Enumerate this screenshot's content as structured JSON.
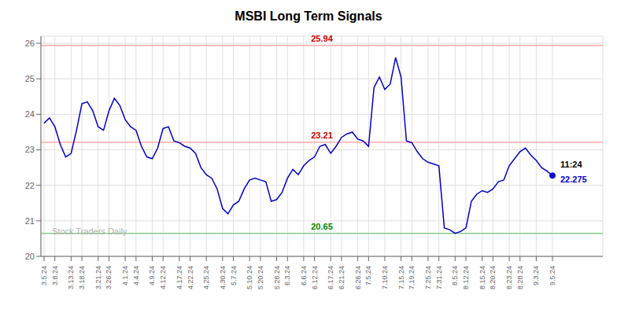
{
  "chart_data": {
    "type": "line",
    "title": "MSBI Long Term Signals",
    "categories": [
      "3.5.24",
      null,
      "3.8.24",
      null,
      null,
      "3.13.24",
      null,
      "3.18.24",
      null,
      null,
      "3.21.24",
      null,
      "3.26.24",
      null,
      null,
      "4.1.24",
      null,
      "4.4.24",
      null,
      null,
      "4.9.24",
      null,
      "4.12.24",
      null,
      null,
      "4.17.24",
      null,
      "4.22.24",
      null,
      null,
      "4.25.24",
      null,
      null,
      "4.30.24",
      null,
      "5.7.24",
      null,
      null,
      "5.10.24",
      null,
      "5.20.24",
      null,
      null,
      "5.28.24",
      null,
      "6.3.24",
      null,
      null,
      "6.6.24",
      null,
      "6.12.24",
      null,
      null,
      "6.17.24",
      null,
      "6.21.24",
      null,
      null,
      "6.26.24",
      null,
      "7.5.24",
      null,
      null,
      "7.10.24",
      null,
      null,
      "7.15.24",
      null,
      "7.19.24",
      null,
      null,
      "7.25.24",
      null,
      "7.31.24",
      null,
      null,
      "8.5.24",
      null,
      "8.12.24",
      null,
      null,
      "8.15.24",
      null,
      "8.20.24",
      null,
      null,
      "8.23.24",
      null,
      "8.28.24",
      null,
      null,
      "9.3.24",
      null,
      null,
      "9.5.24"
    ],
    "values": [
      23.75,
      23.9,
      23.65,
      23.15,
      22.8,
      22.9,
      23.55,
      24.3,
      24.35,
      24.1,
      23.65,
      23.55,
      24.1,
      24.45,
      24.25,
      23.85,
      23.65,
      23.55,
      23.1,
      22.8,
      22.75,
      23.05,
      23.6,
      23.65,
      23.25,
      23.2,
      23.1,
      23.05,
      22.9,
      22.5,
      22.3,
      22.2,
      21.9,
      21.35,
      21.2,
      21.45,
      21.55,
      21.9,
      22.15,
      22.2,
      22.15,
      22.1,
      21.55,
      21.6,
      21.8,
      22.2,
      22.45,
      22.3,
      22.55,
      22.7,
      22.8,
      23.1,
      23.15,
      22.9,
      23.1,
      23.35,
      23.45,
      23.5,
      23.3,
      23.25,
      23.1,
      24.75,
      25.05,
      24.7,
      24.85,
      25.6,
      25.05,
      23.25,
      23.2,
      22.95,
      22.75,
      22.65,
      22.6,
      22.55,
      20.8,
      20.75,
      20.65,
      20.7,
      20.8,
      21.55,
      21.75,
      21.85,
      21.8,
      21.9,
      22.1,
      22.15,
      22.55,
      22.75,
      22.95,
      23.05,
      22.85,
      22.7,
      22.5,
      22.4,
      22.275
    ],
    "color": "#0000cc",
    "ylim": [
      20,
      26.2
    ],
    "yticks": [
      20,
      21,
      22,
      23,
      24,
      25,
      26
    ],
    "grid": true,
    "reference_lines": [
      {
        "value": 25.94,
        "label": "25.94",
        "color": "#ffaaaa",
        "label_color": "#cc0000"
      },
      {
        "value": 23.21,
        "label": "23.21",
        "color": "#ffaaaa",
        "label_color": "#cc0000"
      },
      {
        "value": 20.65,
        "label": "20.65",
        "color": "#88cc88",
        "label_color": "#008800"
      }
    ],
    "last_point_labels": [
      {
        "text": "11:24",
        "color": "#000000"
      },
      {
        "text": "22.275",
        "color": "#0000cc"
      }
    ],
    "watermark": "Stock Traders Daily"
  }
}
